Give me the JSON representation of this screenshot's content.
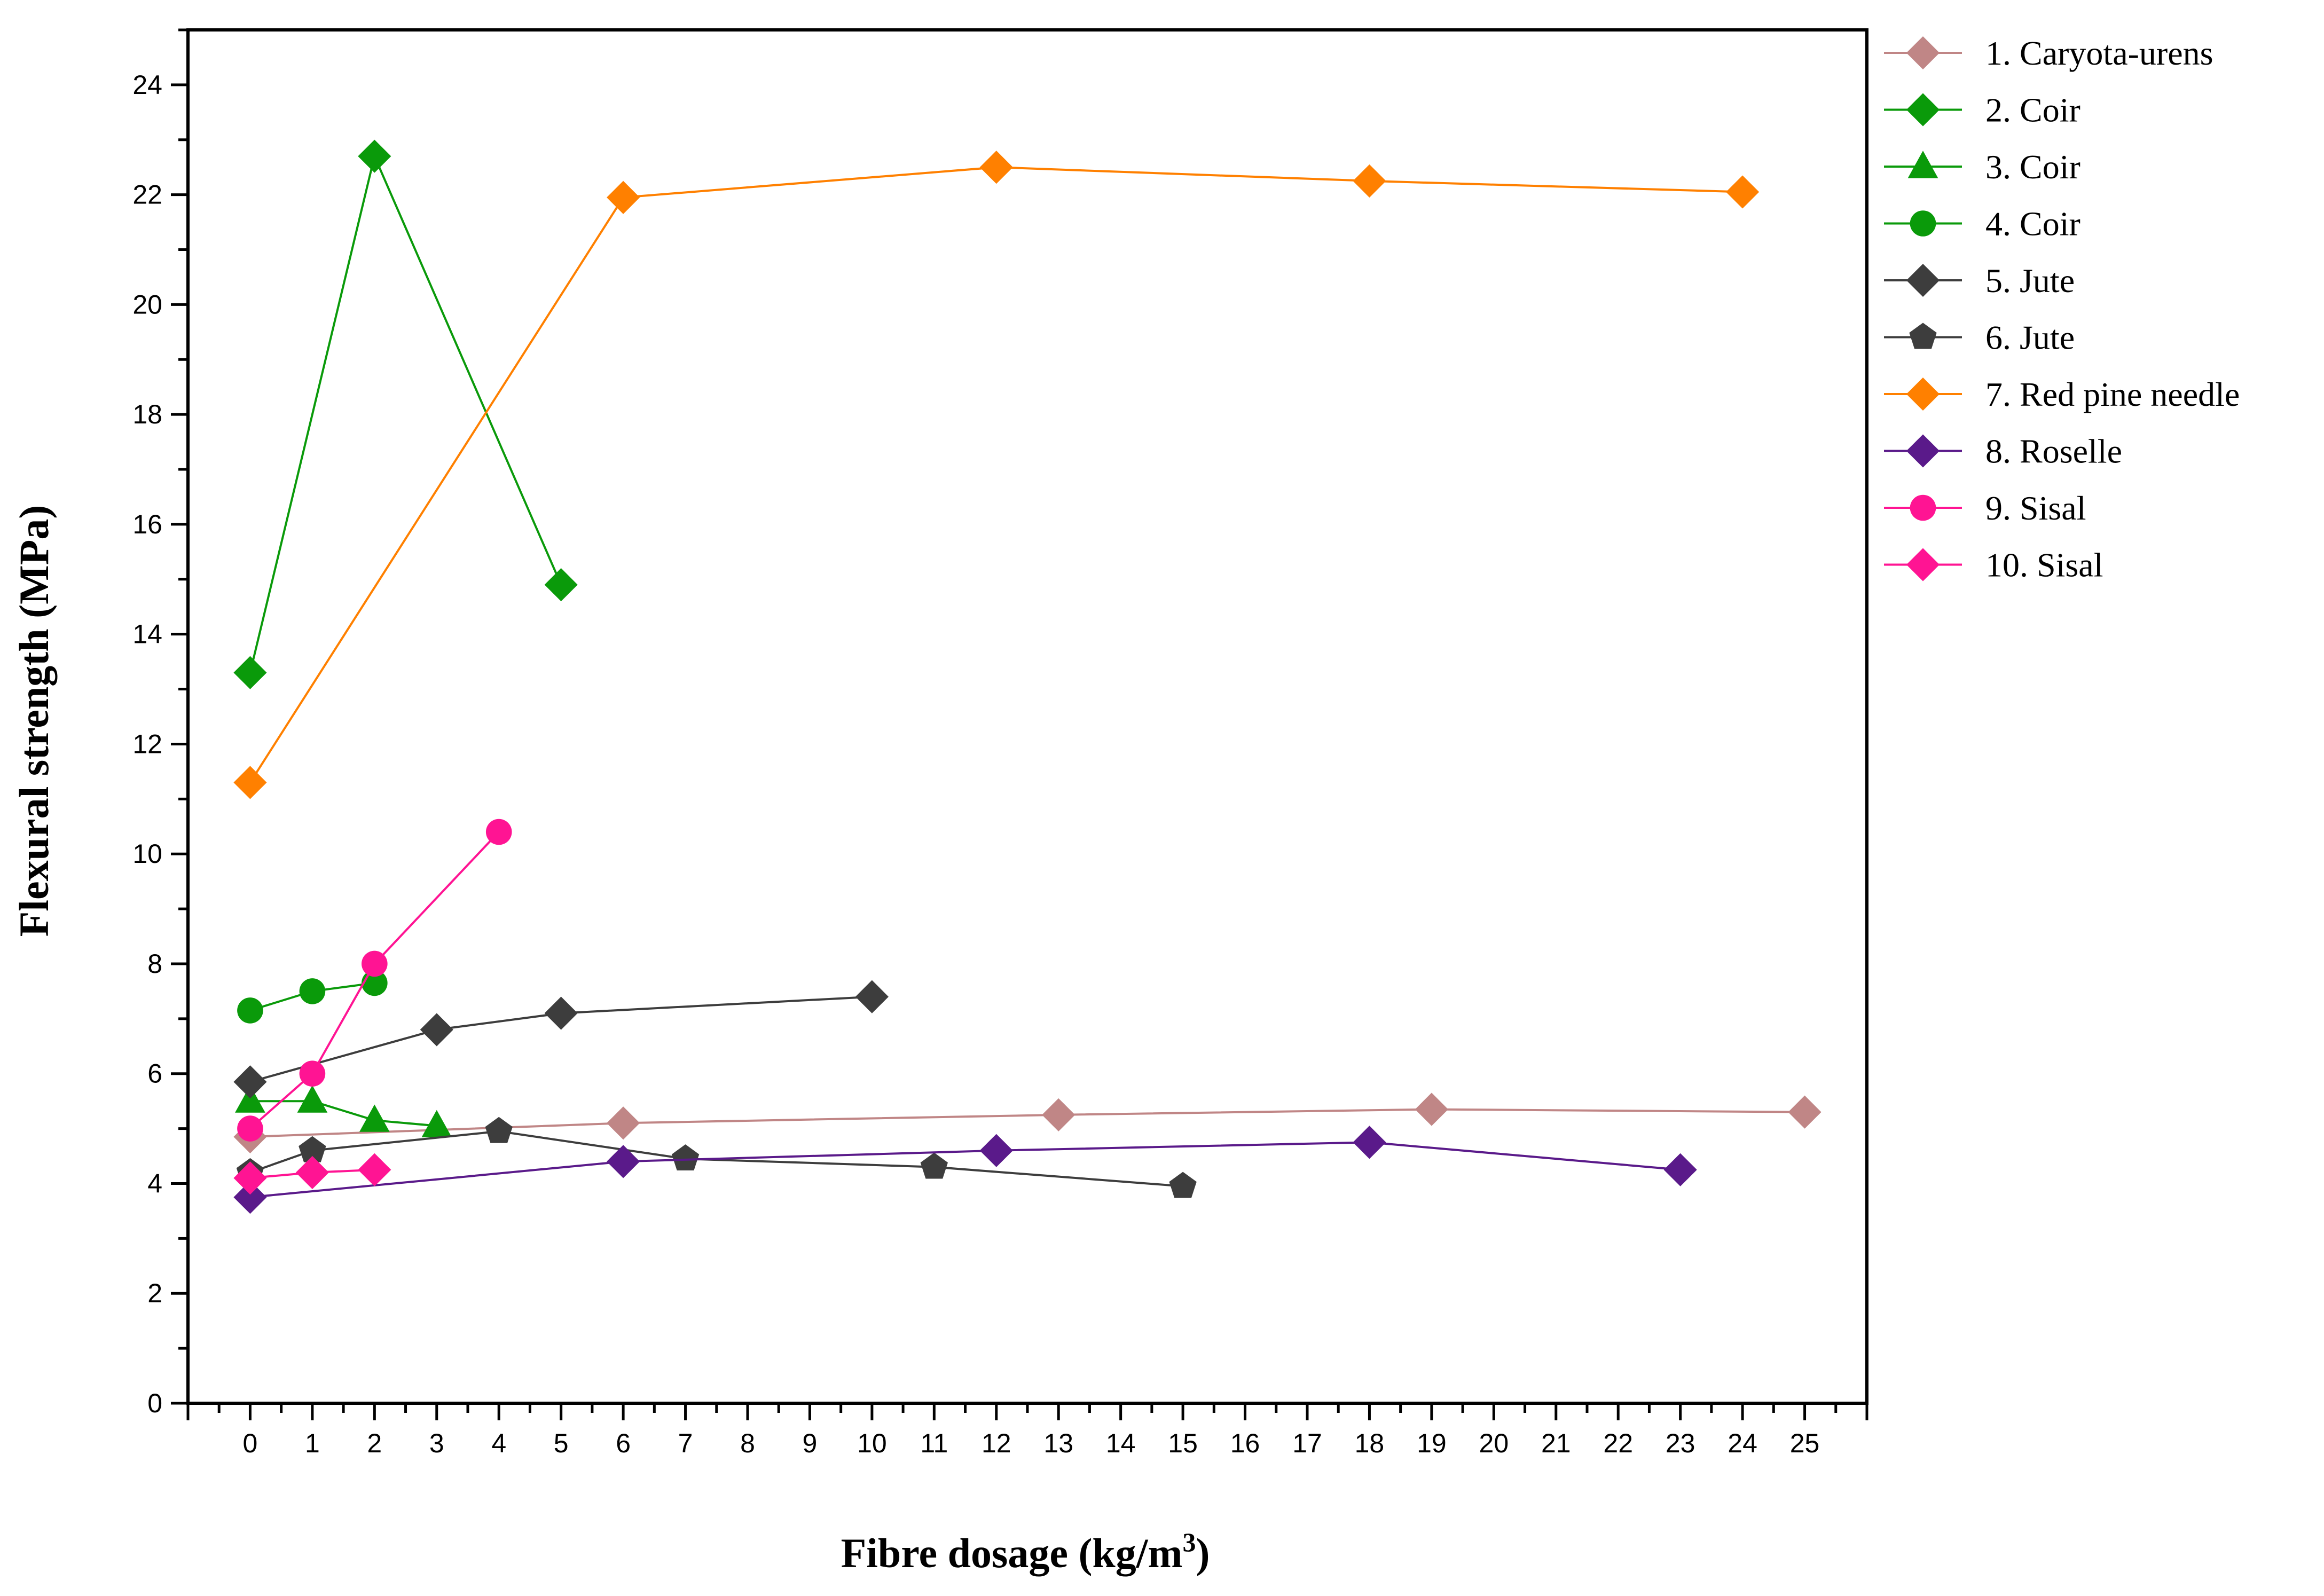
{
  "chart_data": {
    "type": "line",
    "title": "",
    "xlabel_main": "Fibre dosage (kg/m",
    "xlabel_sup": "3",
    "xlabel_close": ")",
    "ylabel": "Flexural strength (MPa)",
    "xlim": [
      -1,
      26
    ],
    "ylim": [
      0,
      25
    ],
    "xticks": [
      0,
      1,
      2,
      3,
      4,
      5,
      6,
      7,
      8,
      9,
      10,
      11,
      12,
      13,
      14,
      15,
      16,
      17,
      18,
      19,
      20,
      21,
      22,
      23,
      24,
      25
    ],
    "xtick_labels": [
      "0",
      "1",
      "2",
      "3",
      "4",
      "5",
      "6",
      "7",
      "8",
      "9",
      "10",
      "11",
      "12",
      "13",
      "14",
      "15",
      "16",
      "17",
      "18",
      "19",
      "20",
      "21",
      "22",
      "23",
      "24",
      "25"
    ],
    "yticks": [
      0,
      2,
      4,
      6,
      8,
      10,
      12,
      14,
      16,
      18,
      20,
      22,
      24
    ],
    "ytick_labels": [
      "0",
      "2",
      "4",
      "6",
      "8",
      "10",
      "12",
      "14",
      "16",
      "18",
      "20",
      "22",
      "24"
    ],
    "grid": false,
    "legend_position": "right",
    "series": [
      {
        "name": "1. Caryota-urens",
        "color": "#c08686",
        "marker": "diamond",
        "x": [
          0,
          6,
          13,
          19,
          25
        ],
        "y": [
          4.85,
          5.1,
          5.25,
          5.35,
          5.3
        ]
      },
      {
        "name": "2. Coir",
        "color": "#0a9a0a",
        "marker": "diamond",
        "x": [
          0,
          2,
          5
        ],
        "y": [
          13.3,
          22.7,
          14.9
        ]
      },
      {
        "name": "3. Coir",
        "color": "#0a9a0a",
        "marker": "triangle",
        "x": [
          0,
          1,
          2,
          3
        ],
        "y": [
          5.5,
          5.5,
          5.15,
          5.05
        ]
      },
      {
        "name": "4. Coir",
        "color": "#0a9a0a",
        "marker": "circle",
        "x": [
          0,
          1,
          2
        ],
        "y": [
          7.15,
          7.5,
          7.65
        ]
      },
      {
        "name": "5. Jute",
        "color": "#3d3d3d",
        "marker": "diamond",
        "x": [
          0,
          3,
          5,
          10
        ],
        "y": [
          5.85,
          6.8,
          7.1,
          7.4
        ]
      },
      {
        "name": "6. Jute",
        "color": "#3d3d3d",
        "marker": "pentagon",
        "x": [
          0,
          1,
          4,
          7,
          11,
          15
        ],
        "y": [
          4.2,
          4.6,
          4.95,
          4.45,
          4.3,
          3.95
        ]
      },
      {
        "name": "7. Red pine needle",
        "color": "#ff8000",
        "marker": "diamond",
        "x": [
          0,
          6,
          12,
          18,
          24
        ],
        "y": [
          11.3,
          21.95,
          22.5,
          22.25,
          22.05
        ]
      },
      {
        "name": "8. Roselle",
        "color": "#5a1a8a",
        "marker": "diamond",
        "x": [
          0,
          6,
          12,
          18,
          23
        ],
        "y": [
          3.75,
          4.4,
          4.6,
          4.75,
          4.25
        ]
      },
      {
        "name": "9. Sisal",
        "color": "#ff1493",
        "marker": "circle",
        "x": [
          0,
          1,
          2,
          4
        ],
        "y": [
          5.0,
          6.0,
          8.0,
          10.4
        ]
      },
      {
        "name": "10. Sisal",
        "color": "#ff1493",
        "marker": "diamond",
        "x": [
          0,
          1,
          2
        ],
        "y": [
          4.1,
          4.2,
          4.25
        ]
      }
    ]
  }
}
